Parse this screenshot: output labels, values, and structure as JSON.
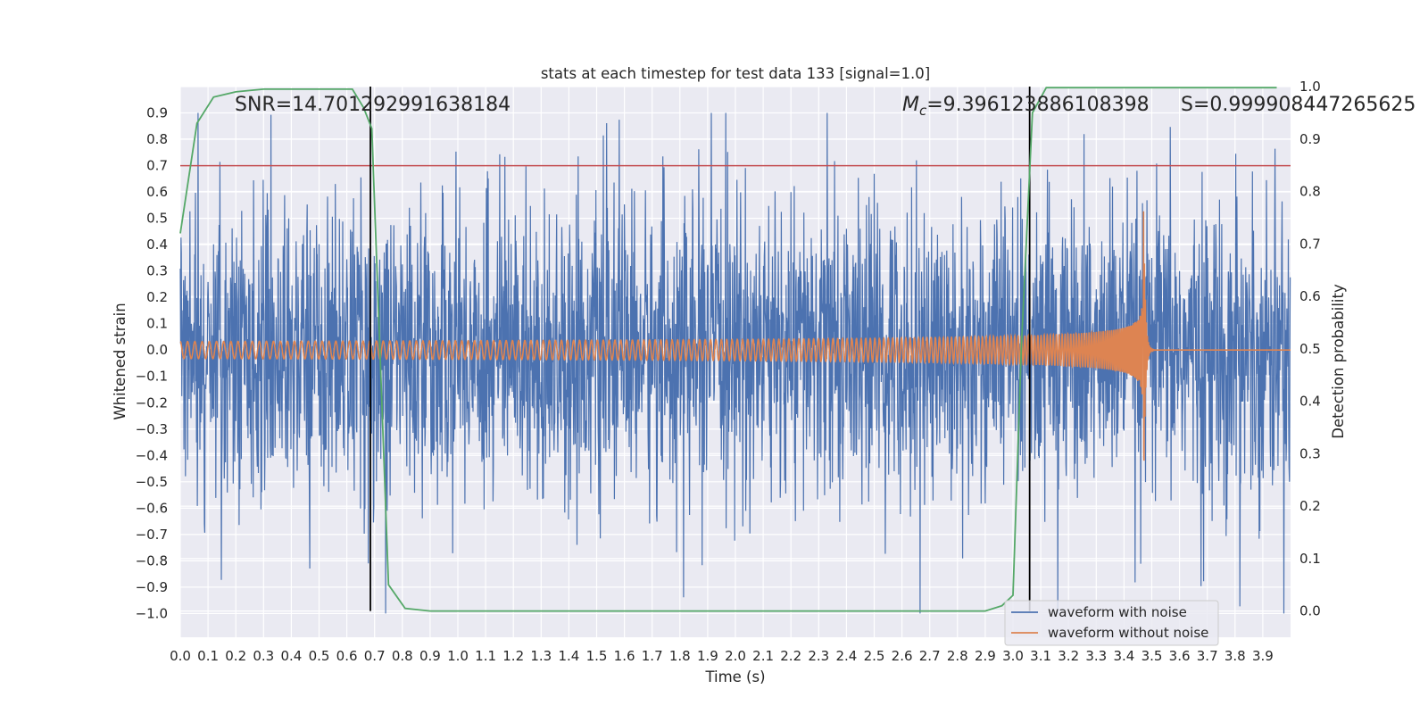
{
  "chart_data": {
    "type": "line",
    "title": "stats at each timestep for test data 133 [signal=1.0]",
    "xlabel": "Time (s)",
    "ylabel": "Whitened strain",
    "y2label": "Detection probability",
    "xlim": [
      0.0,
      4.0
    ],
    "ylim": [
      -1.09,
      1.0
    ],
    "y2lim": [
      -0.05,
      1.0
    ],
    "x_ticks": [
      0.0,
      0.1,
      0.2,
      0.3,
      0.4,
      0.5,
      0.6,
      0.7,
      0.8,
      0.9,
      1.0,
      1.1,
      1.2,
      1.3,
      1.4,
      1.5,
      1.6,
      1.7,
      1.8,
      1.9,
      2.0,
      2.1,
      2.2,
      2.3,
      2.4,
      2.5,
      2.6,
      2.7,
      2.8,
      2.9,
      3.0,
      3.1,
      3.2,
      3.3,
      3.4,
      3.5,
      3.6,
      3.7,
      3.8,
      3.9
    ],
    "x_tick_labels": [
      "0.0",
      "0.1",
      "0.2",
      "0.3",
      "0.4",
      "0.5",
      "0.6",
      "0.7",
      "0.8",
      "0.9",
      "1.0",
      "1.1",
      "1.2",
      "1.3",
      "1.4",
      "1.5",
      "1.6",
      "1.7",
      "1.8",
      "1.9",
      "2.0",
      "2.1",
      "2.2",
      "2.3",
      "2.4",
      "2.5",
      "2.6",
      "2.7",
      "2.8",
      "2.9",
      "3.0",
      "3.1",
      "3.2",
      "3.3",
      "3.4",
      "3.5",
      "3.6",
      "3.7",
      "3.8",
      "3.9"
    ],
    "y_ticks": [
      0.9,
      0.8,
      0.7,
      0.6,
      0.5,
      0.4,
      0.3,
      0.2,
      0.1,
      0.0,
      -0.1,
      -0.2,
      -0.3,
      -0.4,
      -0.5,
      -0.6,
      -0.7,
      -0.8,
      -0.9,
      -1.0
    ],
    "y_tick_labels": [
      "0.9",
      "0.8",
      "0.7",
      "0.6",
      "0.5",
      "0.4",
      "0.3",
      "0.2",
      "0.1",
      "0.0",
      "−0.1",
      "−0.2",
      "−0.3",
      "−0.4",
      "−0.5",
      "−0.6",
      "−0.7",
      "−0.8",
      "−0.9",
      "−1.0"
    ],
    "y2_ticks": [
      0.0,
      0.1,
      0.2,
      0.3,
      0.4,
      0.5,
      0.6,
      0.7,
      0.8,
      0.9,
      1.0
    ],
    "y2_tick_labels": [
      "0.0",
      "0.1",
      "0.2",
      "0.3",
      "0.4",
      "0.5",
      "0.6",
      "0.7",
      "0.8",
      "0.9",
      "1.0"
    ],
    "grid": true,
    "legend_position": "bottom-right",
    "annotations": {
      "snr": "SNR=14.701292991638184",
      "mc_symbol": "M",
      "mc_subscript": "c",
      "mc_value": "=9.396123886108398",
      "s": "S=0.999908447265625"
    },
    "threshold_line": {
      "y": 0.7,
      "color": "#c44e52"
    },
    "vertical_lines": [
      0.685,
      3.06
    ],
    "series": [
      {
        "name": "waveform with noise",
        "color": "#4c72b0",
        "description": "noisy whitened strain, sampled at ~2048 Hz, amplitude roughly within -1.0 to 0.9",
        "x_range": [
          0.0,
          4.0
        ],
        "approx_amplitude_range": [
          -1.0,
          0.9
        ]
      },
      {
        "name": "waveform without noise",
        "color": "#dd8452",
        "description": "chirp signal with rising frequency and amplitude, merger near t=3.47 s, flat after ~3.5 s",
        "chirp_start_freq_hz": 38,
        "merger_time": 3.47,
        "peak_amplitude": 0.63,
        "min_amplitude_at_merger": -0.43
      },
      {
        "name": "detection probability",
        "color": "#55a868",
        "axis": "right",
        "x": [
          0.0,
          0.06,
          0.12,
          0.2,
          0.3,
          0.4,
          0.5,
          0.62,
          0.66,
          0.69,
          0.75,
          0.81,
          0.9,
          1.5,
          2.0,
          2.5,
          2.9,
          2.96,
          3.0,
          3.03,
          3.07,
          3.12,
          3.2,
          3.5,
          3.95
        ],
        "values": [
          0.72,
          0.93,
          0.98,
          0.99,
          0.995,
          0.995,
          0.995,
          0.995,
          0.96,
          0.92,
          0.05,
          0.005,
          0.0,
          0.0,
          0.0,
          0.0,
          0.0,
          0.01,
          0.03,
          0.5,
          0.95,
          0.998,
          0.998,
          0.998,
          0.998
        ]
      }
    ]
  }
}
